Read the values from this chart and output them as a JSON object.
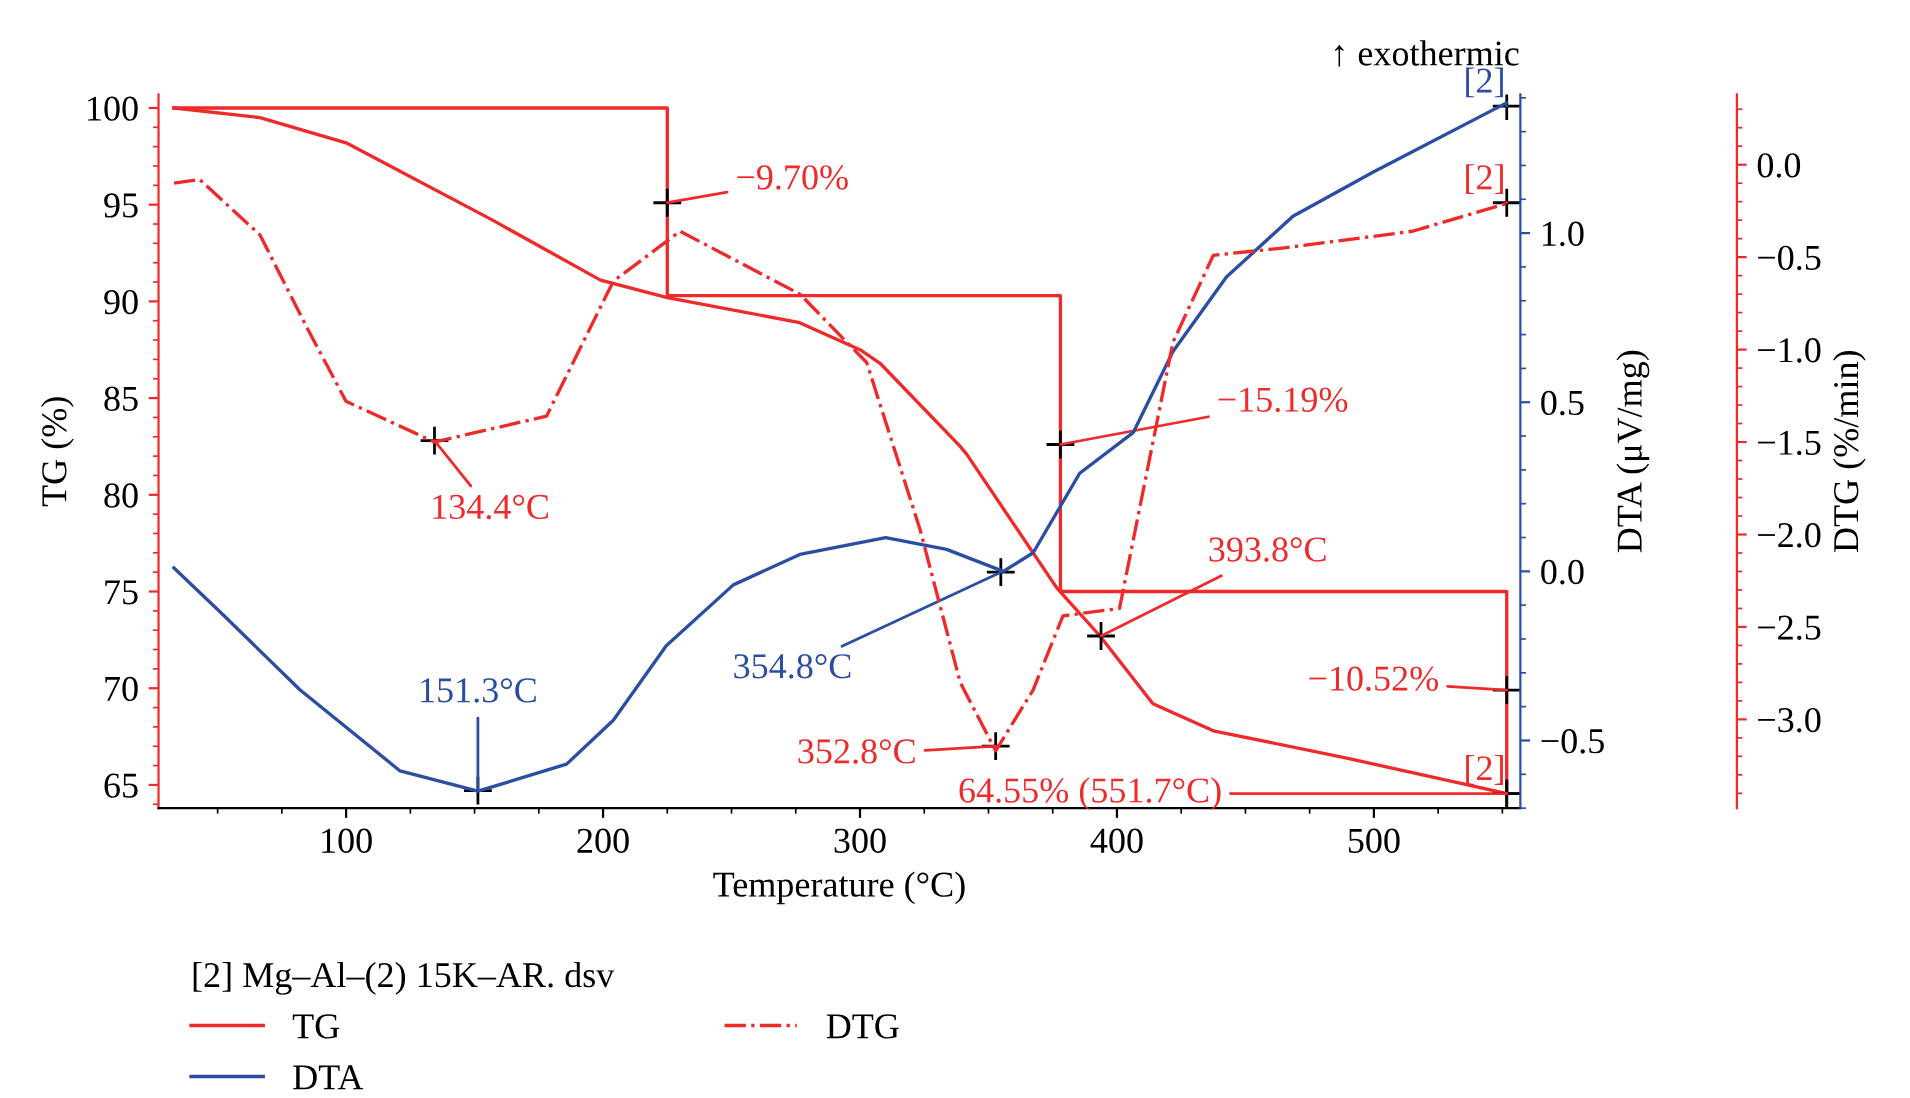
{
  "chart_data": {
    "type": "line",
    "xlabel": "Temperature (°C)",
    "ylabel": "TG (%)",
    "y2label": "DTA (μV/mg)",
    "y3label": "DTG (%/min)",
    "legend_title": "[2] Mg–Al–(2) 15K–AR. dsv",
    "xlim": [
      27,
      557
    ],
    "xticks": [
      100,
      200,
      300,
      400,
      500
    ],
    "ylim": [
      63.8,
      100.7
    ],
    "yticks": [
      65,
      70,
      75,
      80,
      85,
      90,
      95,
      100
    ],
    "y2lim": [
      -0.7,
      1.41
    ],
    "y2ticks": [
      {
        "value": -0.5,
        "label": "−0.5"
      },
      {
        "value": 0,
        "label": "0.0"
      },
      {
        "value": 0.5,
        "label": "0.5"
      },
      {
        "value": 1,
        "label": "1.0"
      }
    ],
    "y3lim": [
      -3.48,
      0.38
    ],
    "y3ticks": [
      {
        "value": -3,
        "label": "−3.0"
      },
      {
        "value": -2.5,
        "label": "−2.5"
      },
      {
        "value": -2,
        "label": "−2.0"
      },
      {
        "value": -1.5,
        "label": "−1.5"
      },
      {
        "value": -1,
        "label": "−1.0"
      },
      {
        "value": -0.5,
        "label": "−0.5"
      },
      {
        "value": 0,
        "label": "0.0"
      }
    ],
    "grid": false,
    "legend": "bottom",
    "series": [
      {
        "name": "TG",
        "color": "#ee2a2a",
        "line_style": "solid",
        "x": [
          33,
          66.5,
          100,
          157,
          199,
          225,
          276.5,
          300,
          307.8,
          339,
          341.5,
          376.5,
          393.4,
          414,
          437.5,
          489,
          551.7
        ],
        "values": [
          100,
          99.5,
          98.2,
          94.2,
          91.1,
          90.2,
          88.9,
          87.5,
          86.8,
          82.5,
          82.1,
          75.2,
          72.7,
          69.2,
          67.8,
          66.4,
          64.55
        ]
      },
      {
        "name": "DTA",
        "color": "#2b4ea2",
        "axis": "y2",
        "line_style": "solid",
        "x": [
          33,
          51,
          82,
          121,
          151.3,
          185.8,
          204,
          224.6,
          250.7,
          276.6,
          310,
          333.7,
          355.8,
          367.4,
          385.5,
          406.3,
          421.8,
          442.6,
          468.5,
          499.6,
          551.6
        ],
        "values": [
          0.01,
          -0.12,
          -0.35,
          -0.59,
          -0.65,
          -0.57,
          -0.44,
          -0.22,
          -0.04,
          0.05,
          0.1,
          0.065,
          0.0,
          0.055,
          0.29,
          0.41,
          0.65,
          0.87,
          1.05,
          1.18,
          1.385
        ]
      },
      {
        "name": "DTG",
        "color": "#ee2a2a",
        "axis": "y3",
        "line_style": "dashdot",
        "x": [
          33,
          43,
          66.5,
          84.7,
          100,
          134.4,
          178,
          204,
          230,
          276.6,
          302.6,
          323.3,
          339,
          352.8,
          367.4,
          379,
          401,
          421.8,
          437.5,
          465,
          515,
          551.6
        ],
        "values": [
          -0.1,
          -0.08,
          -0.38,
          -0.88,
          -1.28,
          -1.5,
          -1.36,
          -0.63,
          -0.36,
          -0.7,
          -1.07,
          -1.97,
          -2.8,
          -3.17,
          -2.84,
          -2.44,
          -2.4,
          -0.96,
          -0.49,
          -0.45,
          -0.36,
          -0.21
        ]
      },
      {
        "type": "step",
        "color": "#ee2a2a",
        "line_style": "solid",
        "x": [
          33,
          225,
          378,
          551.7
        ],
        "values": [
          100,
          90.3,
          75.0,
          64.55
        ]
      }
    ],
    "annotations": [
      "↑ exothermic",
      {
        "text": "[2]",
        "x": 551.7,
        "y": 100.1
      },
      {
        "text": "[2]",
        "x": 551.7,
        "y": 95.1
      },
      {
        "text": "[2]",
        "x": 551.7,
        "y": 64.55
      },
      {
        "text": "−9.70%",
        "x": 225,
        "y": 95.1
      },
      {
        "text": "134.4°C",
        "x": 134.4,
        "y": 82.8
      },
      {
        "text": "151.3°C",
        "x": 151.3,
        "y": 64.7
      },
      {
        "text": "354.8°C",
        "x": 354.8,
        "y": 76.0
      },
      {
        "text": "352.8°C",
        "x": 352.8,
        "y": 67.0
      },
      {
        "text": "−15.19%",
        "x": 378,
        "y": 82.6
      },
      {
        "text": "393.8°C",
        "x": 393.8,
        "y": 72.7
      },
      {
        "text": "−10.52%",
        "x": 551.7,
        "y": 69.9
      },
      {
        "text": "64.55% (551.7°C)",
        "x": 551.7,
        "y": 64.55
      }
    ]
  }
}
